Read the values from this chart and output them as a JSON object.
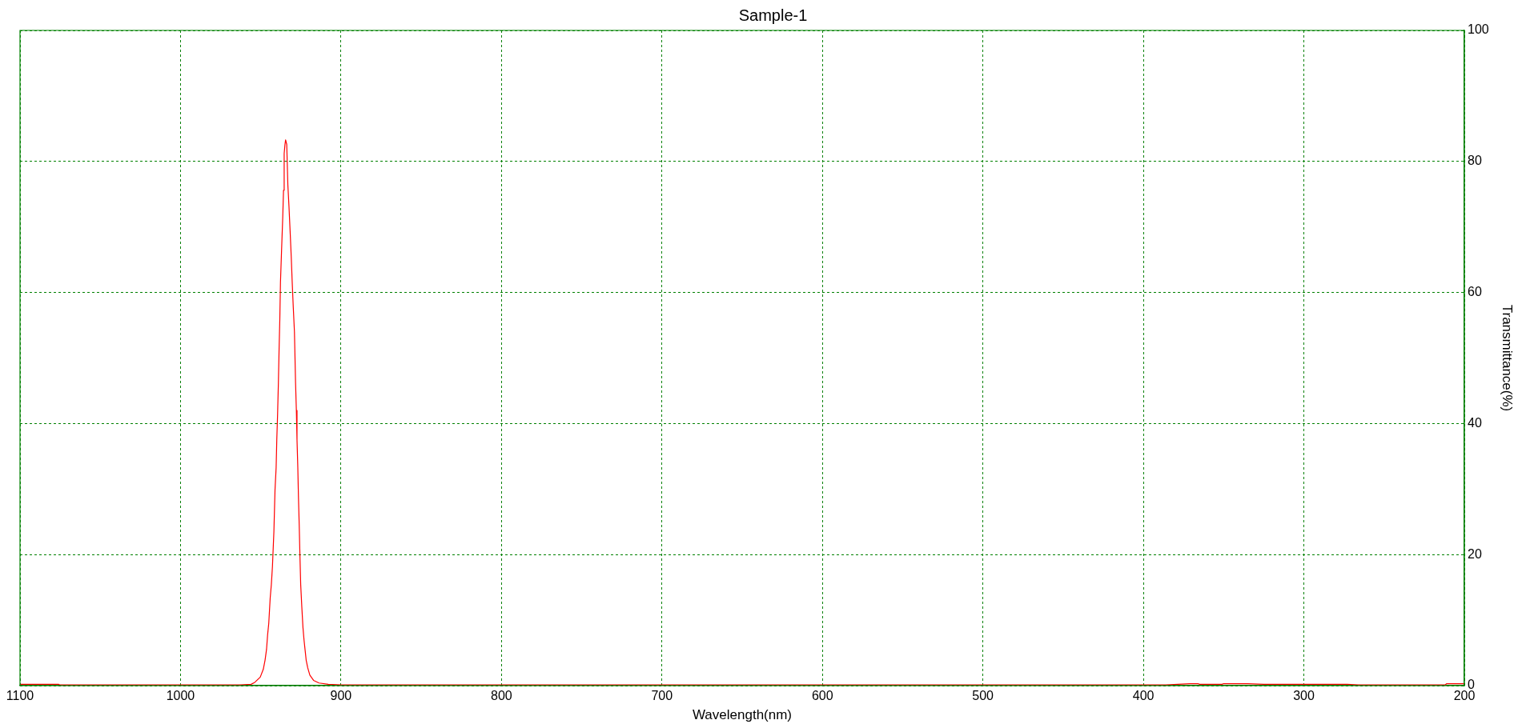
{
  "chart_data": {
    "type": "line",
    "title": "Sample-1",
    "xlabel": "Wavelength(nm)",
    "ylabel": "Transmittance(%)",
    "xlim": [
      1100,
      200
    ],
    "xticks": [
      1100,
      1000,
      900,
      800,
      700,
      600,
      500,
      400,
      300,
      200
    ],
    "ylim": [
      0,
      100
    ],
    "yticks": [
      0,
      20,
      40,
      60,
      80,
      100
    ],
    "grid": true,
    "series": [
      {
        "color": "#ff0000",
        "x": [
          1100,
          1076,
          1075,
          963,
          956,
          953.7,
          950.3,
          948.4,
          947.3,
          946.4,
          945.7,
          945.0,
          944.1,
          943.4,
          942.7,
          941.8,
          941.1,
          940.4,
          940.0,
          939.5,
          939.0,
          938.6,
          938.1,
          937.7,
          937.0,
          936.3,
          935.8,
          935.4,
          934.9,
          934.5,
          933.8,
          933.1,
          932.4,
          931.7,
          931.0,
          930.4,
          929.7,
          929.0,
          928.3,
          927.8,
          927.4,
          926.9,
          926.5,
          926.0,
          925.6,
          925.1,
          924.4,
          923.7,
          923.0,
          922.3,
          921.7,
          920.7,
          919.4,
          917.1,
          913.7,
          907.9,
          900,
          386,
          371,
          366,
          365,
          351,
          350,
          335,
          325,
          273,
          266,
          212,
          211,
          200
        ],
        "values": [
          0.2,
          0.2,
          0.1,
          0.1,
          0.2,
          0.5,
          1.3,
          2.5,
          3.9,
          5.5,
          7.8,
          9.5,
          13.4,
          15.4,
          18.2,
          23.5,
          29.9,
          33.3,
          37.5,
          41.4,
          46.2,
          50.9,
          56.0,
          61.6,
          66.6,
          71.4,
          75.6,
          81.2,
          82.6,
          83.3,
          82.6,
          76.4,
          73.1,
          69.4,
          65.5,
          61.6,
          57.6,
          54.0,
          46.2,
          42.0,
          37.5,
          33.3,
          28.8,
          24.3,
          20.1,
          15.4,
          12.0,
          8.9,
          6.9,
          5.3,
          3.9,
          2.7,
          1.6,
          0.8,
          0.4,
          0.2,
          0.1,
          0.1,
          0.3,
          0.3,
          0.2,
          0.2,
          0.3,
          0.3,
          0.2,
          0.2,
          0.1,
          0.1,
          0.3,
          0.3
        ]
      }
    ]
  }
}
